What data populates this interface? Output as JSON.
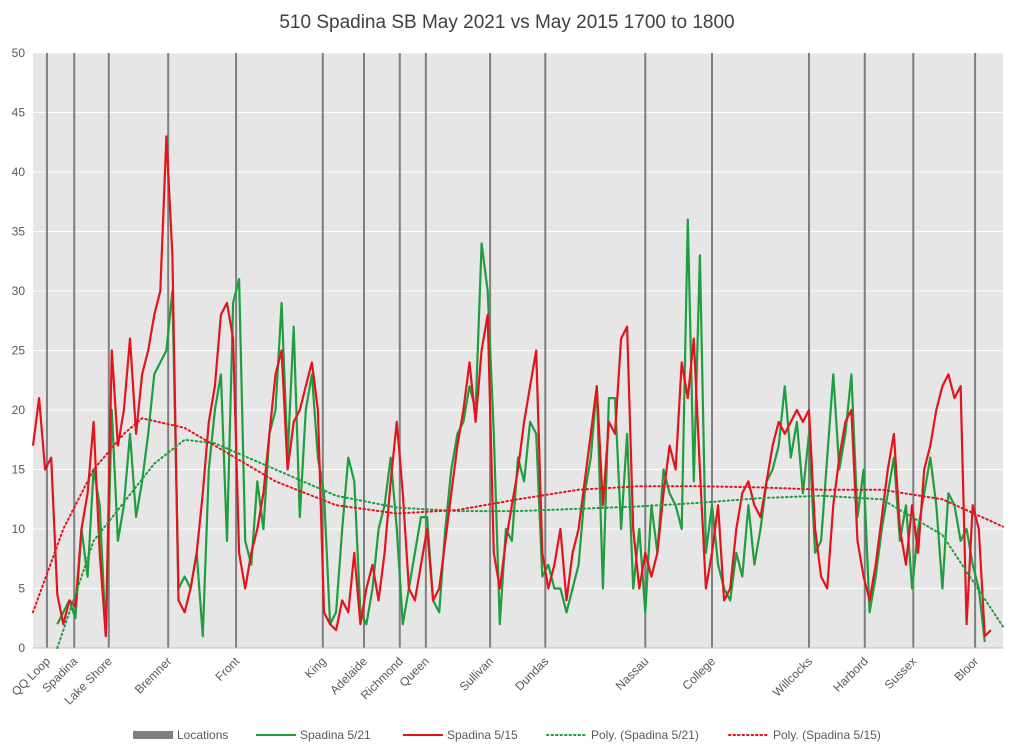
{
  "chart_data": {
    "type": "line",
    "title": "510 Spadina SB May 2021 vs May 2015 1700 to 1800",
    "x": [
      0,
      1,
      2,
      3,
      4,
      5,
      6,
      7,
      8,
      9,
      10,
      11,
      12,
      13,
      14,
      15,
      16,
      17,
      18,
      19,
      20,
      21,
      22,
      23,
      24,
      25,
      26,
      27,
      28,
      29,
      30,
      31,
      32,
      33,
      34,
      35,
      36,
      37,
      38,
      39,
      40,
      41,
      42,
      43,
      44,
      45,
      46,
      47,
      48,
      49,
      50,
      51,
      52,
      53,
      54,
      55,
      56,
      57,
      58,
      59,
      60,
      61,
      62,
      63,
      64,
      65,
      66,
      67,
      68,
      69,
      70,
      71,
      72,
      73,
      74,
      75,
      76,
      77,
      78,
      79,
      80,
      81,
      82,
      83,
      84,
      85,
      86,
      87,
      88,
      89,
      90,
      91,
      92,
      93,
      94,
      95,
      96,
      97,
      98,
      99,
      100,
      101,
      102,
      103,
      104,
      105,
      106,
      107,
      108,
      109,
      110,
      111,
      112,
      113,
      114,
      115,
      116,
      117,
      118,
      119,
      120,
      121,
      122,
      123,
      124,
      125,
      126,
      127,
      128,
      129,
      130,
      131,
      132,
      133,
      134,
      135,
      136,
      137,
      138,
      139,
      140,
      141,
      142,
      143,
      144,
      145,
      146,
      147,
      148,
      149,
      150,
      151,
      152,
      153,
      154,
      155,
      156,
      157,
      158,
      159,
      160
    ],
    "xlim": [
      0,
      160
    ],
    "ylim": [
      0,
      50
    ],
    "yticks": [
      0,
      5,
      10,
      15,
      20,
      25,
      30,
      35,
      40,
      45,
      50
    ],
    "grid": true,
    "locations": {
      "name": "Locations",
      "color": "#7f7f7f",
      "labels": [
        "QQ Loop",
        "Spadina",
        "Lake Shore",
        "Bremner",
        "Front",
        "King",
        "Adelaide",
        "Richmond",
        "Queen",
        "Sullivan",
        "Dundas",
        "Nassau",
        "College",
        "Willcocks",
        "Harbord",
        "Sussex",
        "Bloor"
      ],
      "x": [
        2.3,
        6.8,
        12.5,
        22.3,
        33.5,
        47.8,
        54.6,
        60.5,
        64.8,
        75.4,
        84.5,
        101,
        112,
        128,
        137.2,
        145.2,
        155.4
      ],
      "values": [
        50,
        50,
        50,
        50,
        50,
        50,
        50,
        50,
        50,
        50,
        50,
        50,
        50,
        50,
        50,
        50,
        50
      ]
    },
    "series": [
      {
        "name": "Spadina 5/21",
        "color": "#1e9e3e",
        "values": [
          null,
          null,
          null,
          null,
          2,
          3,
          4,
          2.5,
          10,
          6,
          15,
          12,
          1,
          20,
          9,
          12,
          18,
          11,
          14,
          18,
          23,
          24,
          25,
          30,
          5,
          6,
          5,
          8,
          1,
          15,
          20,
          23,
          9,
          29,
          31,
          9,
          7,
          14,
          10,
          18,
          20,
          29,
          16,
          27,
          11,
          20,
          23,
          16,
          13,
          2,
          3,
          10,
          16,
          14,
          3,
          2,
          5,
          10,
          12,
          16,
          10,
          2,
          5,
          8,
          11,
          11,
          4,
          3,
          10,
          15,
          18,
          19,
          22,
          20,
          34,
          30,
          18,
          2,
          10,
          9,
          16,
          14,
          19,
          18,
          6,
          7,
          5,
          5,
          3,
          5,
          7,
          13,
          16,
          22,
          5,
          21,
          21,
          10,
          18,
          5,
          10,
          3,
          12,
          8,
          15,
          13,
          12,
          10,
          36,
          14,
          33,
          8,
          12,
          7,
          5,
          4,
          8,
          6,
          12,
          7,
          10,
          14,
          15,
          17,
          22,
          16,
          19,
          13,
          18,
          8,
          9,
          16,
          23,
          15,
          18,
          23,
          11,
          15,
          3,
          6,
          10,
          13,
          16,
          9,
          12,
          5,
          10,
          13,
          16,
          12,
          5,
          13,
          12,
          9,
          10,
          7,
          5,
          0.5,
          null,
          null,
          null
        ]
      },
      {
        "name": "Spadina 5/15",
        "color": "#e3141b",
        "values": [
          17,
          21,
          15,
          16,
          4.5,
          2,
          4,
          3.5,
          10,
          13,
          19,
          8,
          1,
          25,
          17,
          20,
          26,
          18,
          23,
          25,
          28,
          30,
          43,
          33,
          4,
          3,
          5,
          8,
          13,
          19,
          22,
          28,
          29,
          26,
          8,
          5,
          8,
          10,
          13,
          18,
          23,
          25,
          15,
          19,
          20,
          22,
          24,
          20,
          3,
          2,
          1.5,
          4,
          3,
          8,
          2,
          5,
          7,
          4,
          8,
          14,
          19,
          13,
          5,
          4,
          7,
          10,
          4,
          5,
          9,
          13,
          17,
          20,
          24,
          19,
          25,
          28,
          8,
          5,
          9,
          12,
          15,
          19,
          22,
          25,
          8,
          5,
          7,
          10,
          4,
          8,
          10,
          14,
          18,
          22,
          12,
          19,
          18,
          26,
          27,
          10,
          5,
          8,
          6,
          8,
          13,
          17,
          15,
          24,
          21,
          26,
          15,
          5,
          8,
          12,
          4,
          5,
          10,
          13,
          14,
          12,
          11,
          14,
          17,
          19,
          18,
          19,
          20,
          19,
          20,
          10,
          6,
          5,
          12,
          16,
          19,
          20,
          9,
          6,
          4,
          7,
          11,
          15,
          18,
          10,
          7,
          12,
          8,
          15,
          17,
          20,
          22,
          23,
          21,
          22,
          2,
          12,
          10,
          1,
          1.5,
          null,
          null
        ]
      },
      {
        "name": "Poly. (Spadina 5/21)",
        "color": "#1e9e3e",
        "dotted": true,
        "x": [
          4,
          10,
          20,
          25,
          30,
          40,
          50,
          60,
          70,
          80,
          90,
          100,
          110,
          120,
          130,
          140,
          150,
          160
        ],
        "values": [
          0,
          9,
          15.5,
          17.5,
          17.2,
          15,
          12.8,
          11.8,
          11.5,
          11.5,
          11.7,
          11.9,
          12.2,
          12.6,
          12.8,
          12.5,
          9.5,
          1.8
        ]
      },
      {
        "name": "Poly. (Spadina 5/15)",
        "color": "#e3141b",
        "dotted": true,
        "x": [
          0,
          5,
          10,
          15,
          18,
          25,
          30,
          40,
          50,
          60,
          70,
          80,
          90,
          100,
          110,
          120,
          130,
          140,
          150,
          160
        ],
        "values": [
          3,
          10,
          15,
          18,
          19.3,
          18.5,
          17,
          14,
          12,
          11.3,
          11.6,
          12.5,
          13.3,
          13.6,
          13.6,
          13.5,
          13.3,
          13.3,
          12.5,
          10.2
        ]
      }
    ]
  }
}
